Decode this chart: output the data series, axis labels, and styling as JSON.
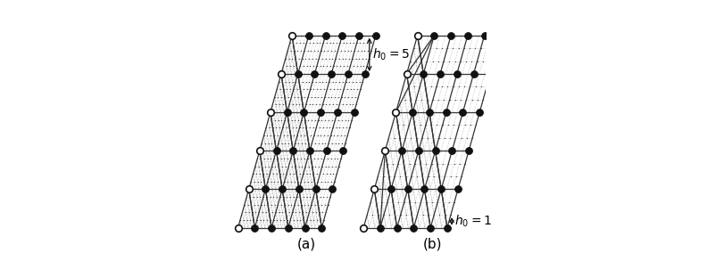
{
  "fig_width": 8.03,
  "fig_height": 2.84,
  "dpi": 100,
  "background": "#ffffff",
  "grid_color": "#333333",
  "fine_color": "#999999",
  "node_open_color": "#ffffff",
  "node_closed_color": "#111111",
  "node_edge_color": "#111111",
  "coarse_n": 5,
  "fine_n_a": 5,
  "fine_n_b": 3,
  "shear": 0.5,
  "label_fontsize": 11,
  "annot_fontsize": 10
}
